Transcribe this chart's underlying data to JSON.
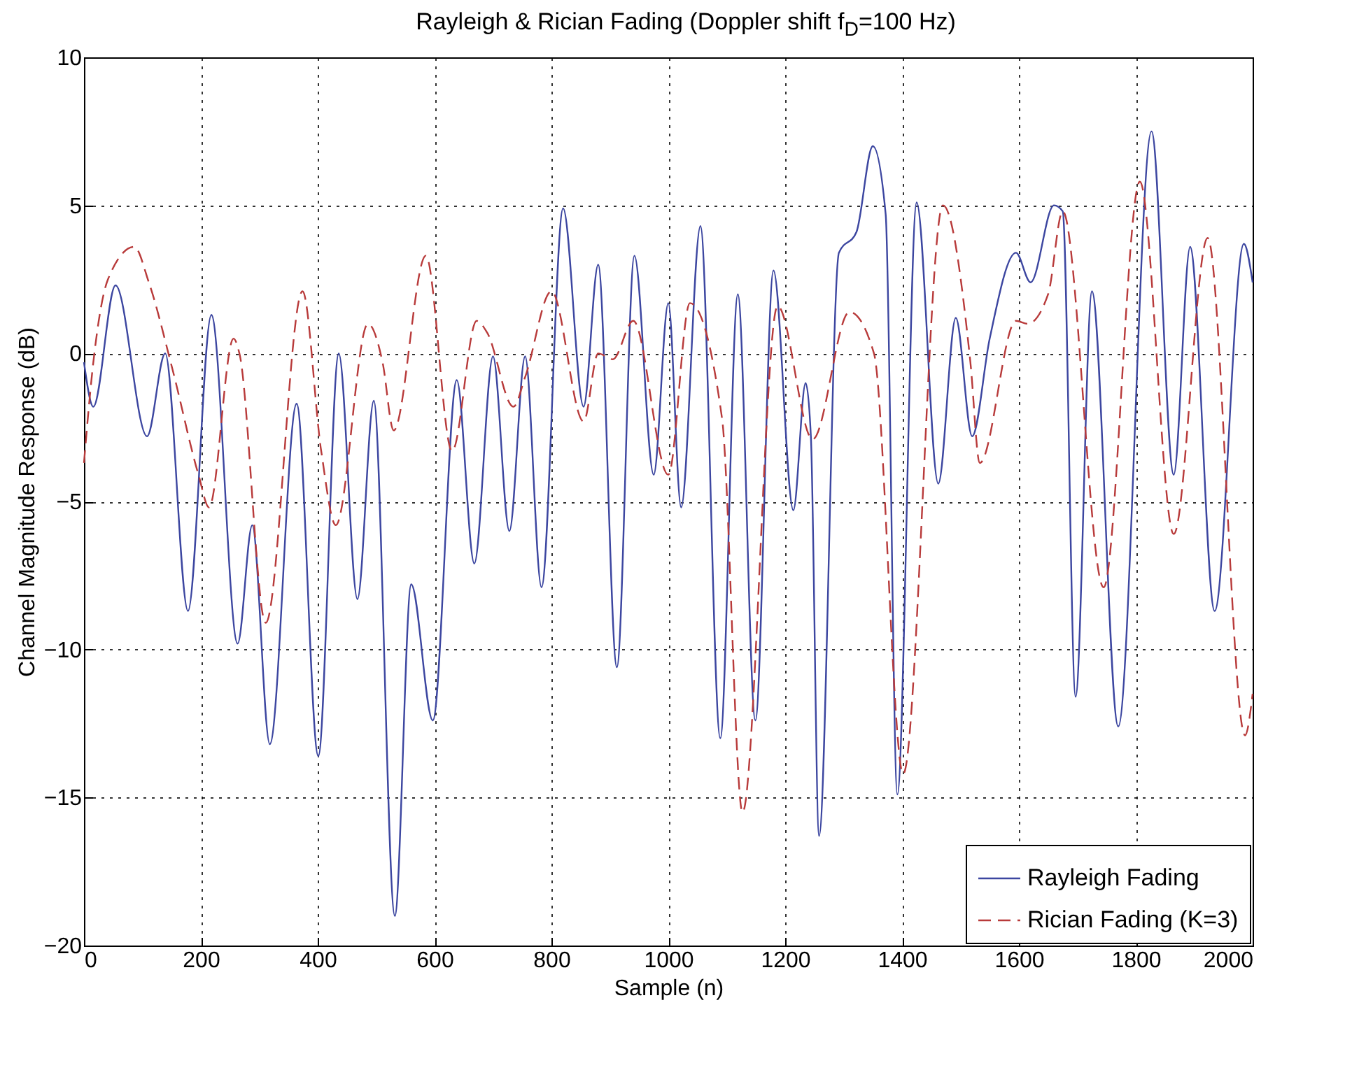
{
  "chart_data": {
    "type": "line",
    "title": "Rayleigh & Rician Fading (Doppler shift f$_{D}$=100 Hz)",
    "xlabel": "Sample (n)",
    "ylabel": "Channel Magnitude Response (dB)",
    "xlim": [
      0,
      2000
    ],
    "xticks": [
      0,
      200,
      400,
      600,
      800,
      1000,
      1200,
      1400,
      1600,
      1800,
      2000
    ],
    "ylim": [
      -20,
      10
    ],
    "yticks": [
      -20,
      -15,
      -10,
      -5,
      0,
      5,
      10
    ],
    "grid": true,
    "legend": "bottom right",
    "series": [
      {
        "name": "Rayleigh Fading",
        "color": "#3c46a0",
        "line_style": "solid",
        "x": [
          0,
          16,
          54,
          108,
          139,
          178,
          218,
          263,
          288,
          318,
          364,
          401,
          436,
          468,
          496,
          532,
          560,
          597,
          638,
          668,
          700,
          728,
          755,
          783,
          820,
          855,
          880,
          912,
          942,
          975,
          1000,
          1022,
          1055,
          1089,
          1119,
          1149,
          1180,
          1214,
          1235,
          1244,
          1258,
          1292,
          1322,
          1350,
          1372,
          1392,
          1425,
          1462,
          1492,
          1520,
          1550,
          1595,
          1620,
          1660,
          1675,
          1697,
          1725,
          1770,
          1827,
          1865,
          1893,
          1935,
          1985,
          2000
        ],
        "values": [
          -0.3,
          -1.8,
          2.3,
          -2.8,
          0.0,
          -8.7,
          1.3,
          -9.8,
          -5.8,
          -13.2,
          -1.7,
          -13.6,
          0.0,
          -8.3,
          -1.6,
          -19.0,
          -7.8,
          -12.4,
          -0.9,
          -7.1,
          -0.1,
          -6.0,
          -0.1,
          -7.9,
          4.9,
          -1.8,
          3.0,
          -10.6,
          3.3,
          -4.1,
          1.7,
          -5.2,
          4.3,
          -13.0,
          2.0,
          -12.4,
          2.8,
          -5.3,
          -1.0,
          -2.8,
          -16.3,
          3.4,
          4.1,
          7.0,
          4.7,
          -14.9,
          5.1,
          -4.4,
          1.2,
          -2.8,
          0.5,
          3.4,
          2.4,
          5.0,
          4.8,
          -11.6,
          2.1,
          -12.6,
          7.5,
          -4.1,
          3.6,
          -8.7,
          3.7,
          2.4
        ]
      },
      {
        "name": "Rician Fading (K=3)",
        "color": "#b83a3a",
        "line_style": "dashed",
        "x": [
          0,
          16,
          41,
          86,
          111,
          151,
          196,
          214,
          256,
          266,
          311,
          374,
          406,
          431,
          486,
          511,
          530,
          585,
          630,
          672,
          690,
          735,
          755,
          800,
          855,
          880,
          905,
          940,
          1000,
          1037,
          1092,
          1127,
          1187,
          1247,
          1310,
          1352,
          1402,
          1470,
          1517,
          1533,
          1595,
          1615,
          1650,
          1675,
          1745,
          1807,
          1865,
          1923,
          1987,
          2000
        ],
        "values": [
          -3.7,
          -0.3,
          2.5,
          3.6,
          2.4,
          -0.5,
          -4.1,
          -5.2,
          0.5,
          0.0,
          -9.1,
          2.1,
          -3.3,
          -5.8,
          1.0,
          -0.3,
          -2.6,
          3.3,
          -3.3,
          1.1,
          0.7,
          -1.8,
          -0.8,
          2.1,
          -2.3,
          0.0,
          -0.2,
          1.1,
          -4.1,
          1.7,
          -2.2,
          -15.5,
          1.6,
          -2.9,
          1.4,
          0.0,
          -14.2,
          5.0,
          -0.3,
          -3.7,
          1.1,
          1.0,
          2.0,
          4.8,
          -7.9,
          5.8,
          -6.1,
          3.9,
          -12.9,
          -11.5
        ]
      }
    ]
  }
}
